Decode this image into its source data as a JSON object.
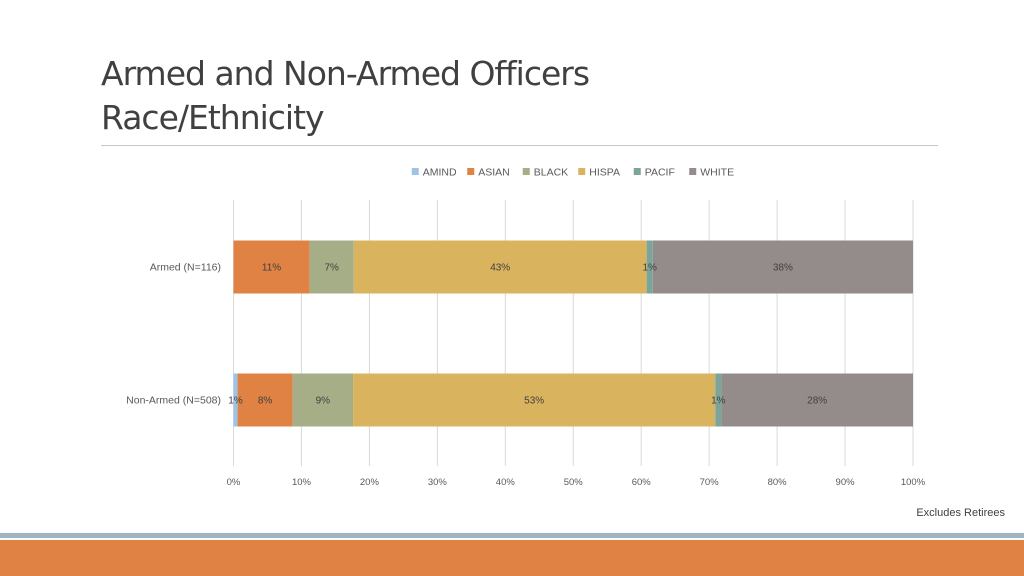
{
  "slide": {
    "title_line1": "Armed and Non-Armed Officers",
    "title_line2": "Race/Ethnicity",
    "footnote": "Excludes Retirees"
  },
  "colors": {
    "AMIND": "#9dc3e6",
    "ASIAN": "#df8244",
    "BLACK": "#a5ae86",
    "HISPA": "#d9b35e",
    "PACIF": "#7ca59a",
    "WHITE": "#948b8b",
    "band_top": "#9fb4c7",
    "band_bottom": "#df8244"
  },
  "chart_data": {
    "type": "bar",
    "orientation": "horizontal",
    "stacked": "percent",
    "categories": [
      "Armed (N=116)",
      "Non-Armed (N=508)"
    ],
    "series": [
      {
        "name": "AMIND",
        "values": [
          0.0,
          0.6
        ],
        "labels": [
          "",
          "1%"
        ]
      },
      {
        "name": "ASIAN",
        "values": [
          11.2,
          8.1
        ],
        "labels": [
          "11%",
          "8%"
        ]
      },
      {
        "name": "BLACK",
        "values": [
          6.5,
          8.9
        ],
        "labels": [
          "7%",
          "9%"
        ]
      },
      {
        "name": "HISPA",
        "values": [
          43.1,
          53.3
        ],
        "labels": [
          "43%",
          "53%"
        ]
      },
      {
        "name": "PACIF",
        "values": [
          0.9,
          0.9
        ],
        "labels": [
          "1%",
          "1%"
        ]
      },
      {
        "name": "WHITE",
        "values": [
          38.3,
          28.2
        ],
        "labels": [
          "38%",
          "28%"
        ]
      }
    ],
    "xlim": [
      0,
      100
    ],
    "xticks": [
      "0%",
      "10%",
      "20%",
      "30%",
      "40%",
      "50%",
      "60%",
      "70%",
      "80%",
      "90%",
      "100%"
    ],
    "grid": true,
    "legend": "top"
  }
}
